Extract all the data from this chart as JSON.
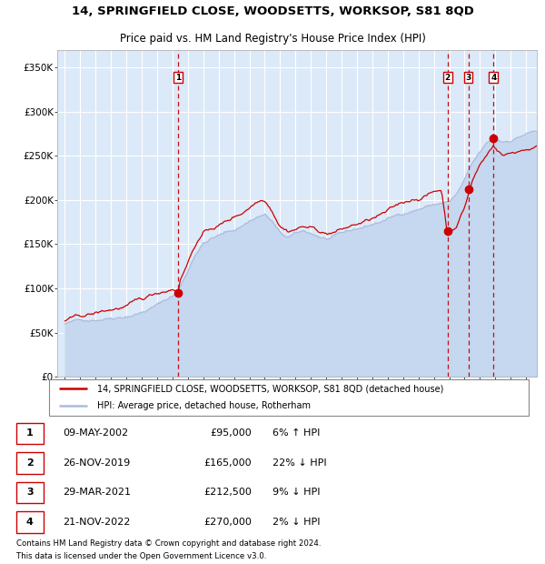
{
  "title1": "14, SPRINGFIELD CLOSE, WOODSETTS, WORKSOP, S81 8QD",
  "title2": "Price paid vs. HM Land Registry's House Price Index (HPI)",
  "legend_property": "14, SPRINGFIELD CLOSE, WOODSETTS, WORKSOP, S81 8QD (detached house)",
  "legend_hpi": "HPI: Average price, detached house, Rotherham",
  "footer1": "Contains HM Land Registry data © Crown copyright and database right 2024.",
  "footer2": "This data is licensed under the Open Government Licence v3.0.",
  "sales": [
    {
      "num": 1,
      "date": "09-MAY-2002",
      "price": 95000,
      "pct": "6%",
      "dir": "↑"
    },
    {
      "num": 2,
      "date": "26-NOV-2019",
      "price": 165000,
      "pct": "22%",
      "dir": "↓"
    },
    {
      "num": 3,
      "date": "29-MAR-2021",
      "price": 212500,
      "pct": "9%",
      "dir": "↓"
    },
    {
      "num": 4,
      "date": "21-NOV-2022",
      "price": 270000,
      "pct": "2%",
      "dir": "↓"
    }
  ],
  "sale_years": [
    2002.35,
    2019.9,
    2021.24,
    2022.89
  ],
  "sale_prices": [
    95000,
    165000,
    212500,
    270000
  ],
  "ylim": [
    0,
    370000
  ],
  "yticks": [
    0,
    50000,
    100000,
    150000,
    200000,
    250000,
    300000,
    350000
  ],
  "ytick_labels": [
    "£0",
    "£50K",
    "£100K",
    "£150K",
    "£200K",
    "£250K",
    "£300K",
    "£350K"
  ],
  "xlim_start": 1994.5,
  "xlim_end": 2025.7,
  "xticks": [
    1995,
    1996,
    1997,
    1998,
    1999,
    2000,
    2001,
    2002,
    2003,
    2004,
    2005,
    2006,
    2007,
    2008,
    2009,
    2010,
    2011,
    2012,
    2013,
    2014,
    2015,
    2016,
    2017,
    2018,
    2019,
    2020,
    2021,
    2022,
    2023,
    2024,
    2025
  ],
  "bg_color": "#dce9f8",
  "line_color_property": "#cc0000",
  "line_color_hpi": "#aabbdd",
  "fill_color_hpi": "#c5d8f0",
  "vline_color": "#cc0000",
  "marker_color": "#cc0000",
  "grid_color": "#ffffff",
  "box_color": "#cc0000",
  "hpi_waypoints": [
    [
      1995.0,
      60000
    ],
    [
      1996.0,
      63000
    ],
    [
      1997.0,
      66000
    ],
    [
      1998.0,
      70000
    ],
    [
      1999.0,
      74000
    ],
    [
      2000.0,
      79000
    ],
    [
      2001.0,
      87000
    ],
    [
      2002.0,
      97000
    ],
    [
      2002.5,
      107000
    ],
    [
      2003.0,
      126000
    ],
    [
      2003.5,
      146000
    ],
    [
      2004.0,
      158000
    ],
    [
      2004.5,
      163000
    ],
    [
      2005.0,
      166000
    ],
    [
      2005.5,
      169000
    ],
    [
      2006.0,
      172000
    ],
    [
      2006.5,
      177000
    ],
    [
      2007.0,
      183000
    ],
    [
      2007.5,
      188000
    ],
    [
      2008.0,
      191000
    ],
    [
      2008.5,
      182000
    ],
    [
      2009.0,
      168000
    ],
    [
      2009.5,
      163000
    ],
    [
      2010.0,
      166000
    ],
    [
      2010.5,
      168000
    ],
    [
      2011.0,
      166000
    ],
    [
      2011.5,
      163000
    ],
    [
      2012.0,
      160000
    ],
    [
      2012.5,
      161000
    ],
    [
      2013.0,
      163000
    ],
    [
      2013.5,
      165000
    ],
    [
      2014.0,
      168000
    ],
    [
      2014.5,
      170000
    ],
    [
      2015.0,
      173000
    ],
    [
      2015.5,
      176000
    ],
    [
      2016.0,
      179000
    ],
    [
      2016.5,
      182000
    ],
    [
      2017.0,
      186000
    ],
    [
      2017.5,
      189000
    ],
    [
      2018.0,
      192000
    ],
    [
      2018.5,
      195000
    ],
    [
      2019.0,
      197000
    ],
    [
      2019.5,
      199000
    ],
    [
      2020.0,
      200000
    ],
    [
      2020.5,
      208000
    ],
    [
      2021.0,
      223000
    ],
    [
      2021.5,
      240000
    ],
    [
      2022.0,
      252000
    ],
    [
      2022.5,
      262000
    ],
    [
      2023.0,
      266000
    ],
    [
      2023.5,
      263000
    ],
    [
      2024.0,
      266000
    ],
    [
      2024.5,
      270000
    ],
    [
      2025.0,
      274000
    ],
    [
      2025.5,
      276000
    ]
  ],
  "prop_waypoints": [
    [
      1995.0,
      63000
    ],
    [
      1996.0,
      66000
    ],
    [
      1997.0,
      69000
    ],
    [
      1998.0,
      73000
    ],
    [
      1999.0,
      77000
    ],
    [
      2000.0,
      81000
    ],
    [
      2001.0,
      89000
    ],
    [
      2002.0,
      96000
    ],
    [
      2002.35,
      95000
    ],
    [
      2002.5,
      108000
    ],
    [
      2003.0,
      128000
    ],
    [
      2003.5,
      150000
    ],
    [
      2004.0,
      161000
    ],
    [
      2004.5,
      166000
    ],
    [
      2005.0,
      170000
    ],
    [
      2005.5,
      174000
    ],
    [
      2006.0,
      179000
    ],
    [
      2006.5,
      184000
    ],
    [
      2007.0,
      192000
    ],
    [
      2007.5,
      199000
    ],
    [
      2008.0,
      203000
    ],
    [
      2008.5,
      192000
    ],
    [
      2009.0,
      177000
    ],
    [
      2009.5,
      172000
    ],
    [
      2010.0,
      175000
    ],
    [
      2010.5,
      178000
    ],
    [
      2011.0,
      176000
    ],
    [
      2011.5,
      173000
    ],
    [
      2012.0,
      170000
    ],
    [
      2012.5,
      172000
    ],
    [
      2013.0,
      174000
    ],
    [
      2013.5,
      177000
    ],
    [
      2014.0,
      180000
    ],
    [
      2014.5,
      182000
    ],
    [
      2015.0,
      185000
    ],
    [
      2015.5,
      188000
    ],
    [
      2016.0,
      191000
    ],
    [
      2016.5,
      195000
    ],
    [
      2017.0,
      199000
    ],
    [
      2017.5,
      203000
    ],
    [
      2018.0,
      206000
    ],
    [
      2018.5,
      210000
    ],
    [
      2019.0,
      213000
    ],
    [
      2019.5,
      216000
    ],
    [
      2019.9,
      165000
    ],
    [
      2020.0,
      168000
    ],
    [
      2020.5,
      178000
    ],
    [
      2021.0,
      198000
    ],
    [
      2021.24,
      212500
    ],
    [
      2021.5,
      228000
    ],
    [
      2022.0,
      246000
    ],
    [
      2022.5,
      258000
    ],
    [
      2022.89,
      270000
    ],
    [
      2023.0,
      266000
    ],
    [
      2023.5,
      258000
    ],
    [
      2024.0,
      260000
    ],
    [
      2024.5,
      263000
    ],
    [
      2025.0,
      266000
    ],
    [
      2025.5,
      268000
    ]
  ]
}
